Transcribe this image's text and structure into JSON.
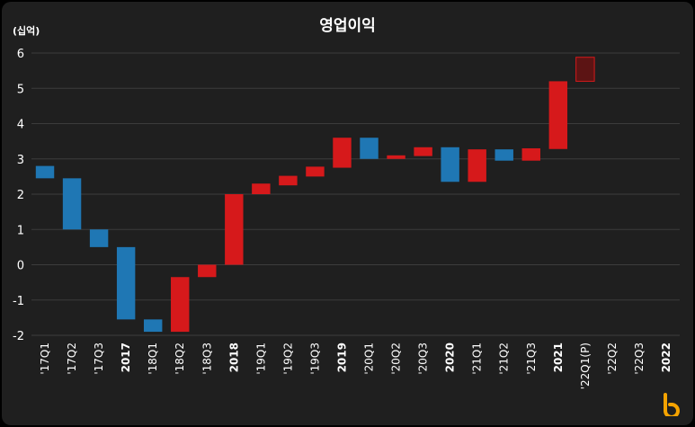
{
  "chart_data": {
    "type": "bar",
    "subtype": "waterfall",
    "title": "영업이익",
    "unit_label": "(십억)",
    "ylim": [
      -2,
      6
    ],
    "yticks": [
      -2,
      -1,
      0,
      1,
      2,
      3,
      4,
      5,
      6
    ],
    "grid": true,
    "categories": [
      "'17Q1",
      "'17Q2",
      "'17Q3",
      "2017",
      "'18Q1",
      "'18Q2",
      "'18Q3",
      "2018",
      "'19Q1",
      "'19Q2",
      "'19Q3",
      "2019",
      "'20Q1",
      "'20Q2",
      "'20Q3",
      "2020",
      "'21Q1",
      "'21Q2",
      "'21Q3",
      "2021",
      "'22Q1(P)",
      "'22Q2",
      "'22Q3",
      "2022"
    ],
    "bold_categories": [
      "2017",
      "2018",
      "2019",
      "2020",
      "2021",
      "2022"
    ],
    "bars": [
      {
        "category": "'17Q1",
        "start": 2.8,
        "end": 2.45,
        "color": "blue"
      },
      {
        "category": "'17Q2",
        "start": 2.45,
        "end": 1.0,
        "color": "blue"
      },
      {
        "category": "'17Q3",
        "start": 1.0,
        "end": 0.5,
        "color": "blue"
      },
      {
        "category": "2017",
        "start": 0.5,
        "end": -1.55,
        "color": "blue"
      },
      {
        "category": "'18Q1",
        "start": -1.55,
        "end": -1.9,
        "color": "blue"
      },
      {
        "category": "'18Q2",
        "start": -1.9,
        "end": -0.35,
        "color": "red"
      },
      {
        "category": "'18Q3",
        "start": -0.35,
        "end": 0.0,
        "color": "red"
      },
      {
        "category": "2018",
        "start": 0.0,
        "end": 2.0,
        "color": "red"
      },
      {
        "category": "'19Q1",
        "start": 2.0,
        "end": 2.3,
        "color": "red"
      },
      {
        "category": "'19Q2",
        "start": 2.25,
        "end": 2.52,
        "color": "red"
      },
      {
        "category": "'19Q3",
        "start": 2.5,
        "end": 2.78,
        "color": "red"
      },
      {
        "category": "2019",
        "start": 2.75,
        "end": 3.6,
        "color": "red"
      },
      {
        "category": "'20Q1",
        "start": 3.6,
        "end": 3.0,
        "color": "blue"
      },
      {
        "category": "'20Q2",
        "start": 3.0,
        "end": 3.1,
        "color": "red"
      },
      {
        "category": "'20Q3",
        "start": 3.08,
        "end": 3.33,
        "color": "red"
      },
      {
        "category": "2020",
        "start": 3.33,
        "end": 2.35,
        "color": "blue"
      },
      {
        "category": "'21Q1",
        "start": 2.35,
        "end": 3.27,
        "color": "red"
      },
      {
        "category": "'21Q2",
        "start": 3.27,
        "end": 2.95,
        "color": "blue"
      },
      {
        "category": "'21Q3",
        "start": 2.95,
        "end": 3.3,
        "color": "red"
      },
      {
        "category": "2021",
        "start": 3.28,
        "end": 5.2,
        "color": "red"
      },
      {
        "category": "'22Q1(P)",
        "start": 5.2,
        "end": 5.88,
        "color": "darkred"
      }
    ],
    "colors": {
      "blue": "#1f77b4",
      "red": "#d6191b",
      "darkred": "#5c1414",
      "grid": "#3c3c3c",
      "text": "#ffffff",
      "logo": "#f5a300"
    }
  }
}
